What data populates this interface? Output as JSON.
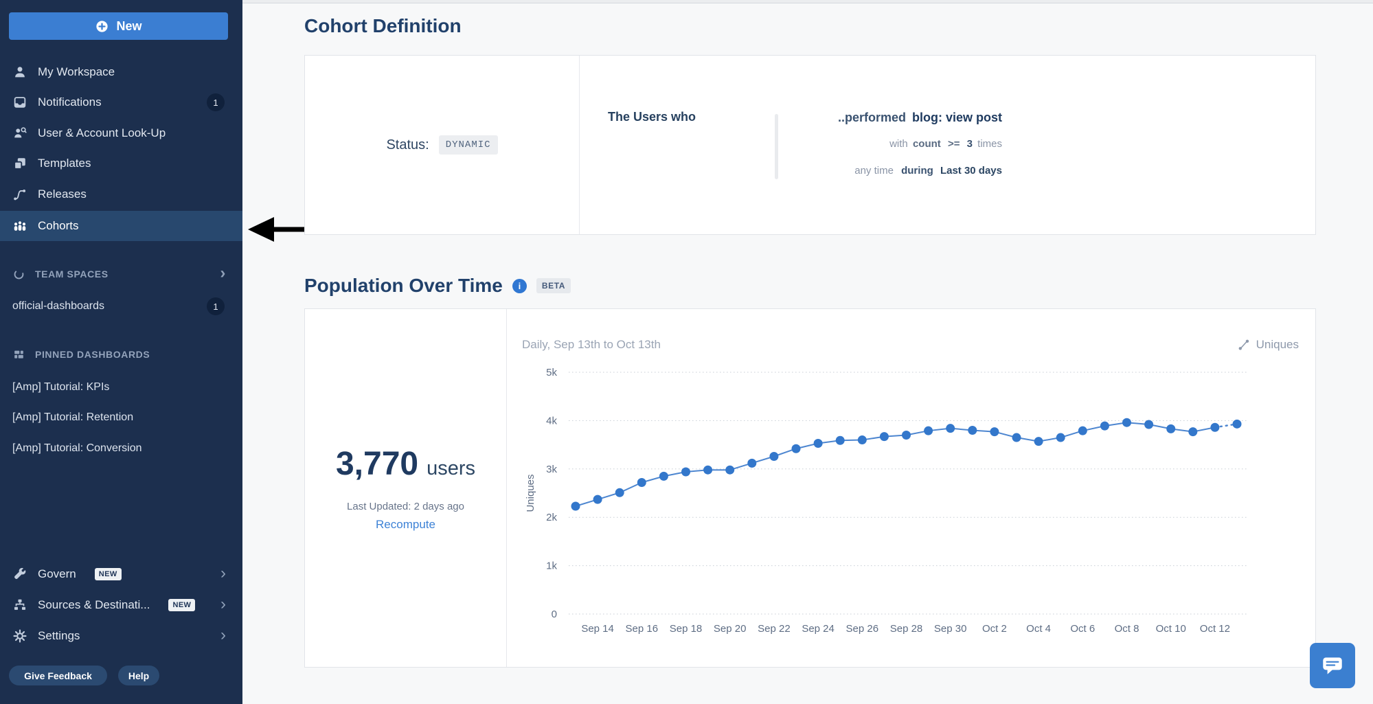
{
  "sidebar": {
    "new_button_label": "New",
    "nav_items": [
      {
        "label": "My Workspace"
      },
      {
        "label": "Notifications",
        "badge": "1"
      },
      {
        "label": "User & Account Look-Up"
      },
      {
        "label": "Templates"
      },
      {
        "label": "Releases"
      },
      {
        "label": "Cohorts",
        "active": true
      }
    ],
    "team_spaces": {
      "header": "TEAM SPACES",
      "items": [
        {
          "label": "official-dashboards",
          "badge": "1"
        }
      ]
    },
    "pinned": {
      "header": "PINNED DASHBOARDS",
      "items": [
        {
          "label": "[Amp] Tutorial: KPIs"
        },
        {
          "label": "[Amp] Tutorial: Retention"
        },
        {
          "label": "[Amp] Tutorial: Conversion"
        }
      ]
    },
    "footer_nav": [
      {
        "label": "Govern",
        "badge": "NEW"
      },
      {
        "label": "Sources & Destinati...",
        "badge": "NEW"
      },
      {
        "label": "Settings"
      }
    ],
    "feedback_label": "Give Feedback",
    "help_label": "Help"
  },
  "cohort": {
    "section_title": "Cohort Definition",
    "status_label": "Status:",
    "status_value": "DYNAMIC",
    "subject": "The Users who",
    "rule_verb": "..performed",
    "rule_event": "blog: view post",
    "rule_with": "with",
    "rule_count_prop": "count",
    "rule_operator": ">=",
    "rule_count_value": "3",
    "rule_times": "times",
    "rule_anytime": "any time",
    "rule_during": "during",
    "rule_window": "Last 30 days"
  },
  "population": {
    "section_title": "Population Over Time",
    "beta_badge": "BETA",
    "stat_value": "3,770",
    "stat_unit": "users",
    "last_updated": "Last Updated: 2 days ago",
    "recompute_label": "Recompute",
    "range_label": "Daily, Sep 13th to Oct 13th",
    "metric_toggle": "Uniques"
  },
  "chart_data": {
    "type": "line",
    "title": "Population Over Time",
    "ylabel": "Uniques",
    "ylim": [
      0,
      5000
    ],
    "yticks": [
      0,
      1000,
      2000,
      3000,
      4000,
      5000
    ],
    "ytick_labels": [
      "0",
      "1k",
      "2k",
      "3k",
      "4k",
      "5k"
    ],
    "x": [
      "Sep 13",
      "Sep 14",
      "Sep 15",
      "Sep 16",
      "Sep 17",
      "Sep 18",
      "Sep 19",
      "Sep 20",
      "Sep 21",
      "Sep 22",
      "Sep 23",
      "Sep 24",
      "Sep 25",
      "Sep 26",
      "Sep 27",
      "Sep 28",
      "Sep 29",
      "Sep 30",
      "Oct 1",
      "Oct 2",
      "Oct 3",
      "Oct 4",
      "Oct 5",
      "Oct 6",
      "Oct 7",
      "Oct 8",
      "Oct 9",
      "Oct 10",
      "Oct 11",
      "Oct 12",
      "Oct 13"
    ],
    "values": [
      2230,
      2370,
      2510,
      2720,
      2850,
      2940,
      2980,
      2980,
      3120,
      3260,
      3420,
      3530,
      3590,
      3600,
      3670,
      3700,
      3790,
      3840,
      3800,
      3770,
      3650,
      3570,
      3650,
      3790,
      3890,
      3960,
      3920,
      3830,
      3770,
      3860,
      3930
    ],
    "xtick_labels": [
      "Sep 14",
      "Sep 16",
      "Sep 18",
      "Sep 20",
      "Sep 22",
      "Sep 24",
      "Sep 26",
      "Sep 28",
      "Sep 30",
      "Oct 2",
      "Oct 4",
      "Oct 6",
      "Oct 8",
      "Oct 10",
      "Oct 12"
    ],
    "grid": "horizontal-dotted",
    "legend": "none",
    "line_color": "#4d86d0",
    "point_color": "#3377cb",
    "last_segment_style": "dotted"
  },
  "colors": {
    "sidebar_bg": "#1c2f4e",
    "sidebar_active": "#28486e",
    "accent_blue": "#3b7ed2",
    "title_navy": "#21416b",
    "panel_border": "#e1e4e9"
  }
}
